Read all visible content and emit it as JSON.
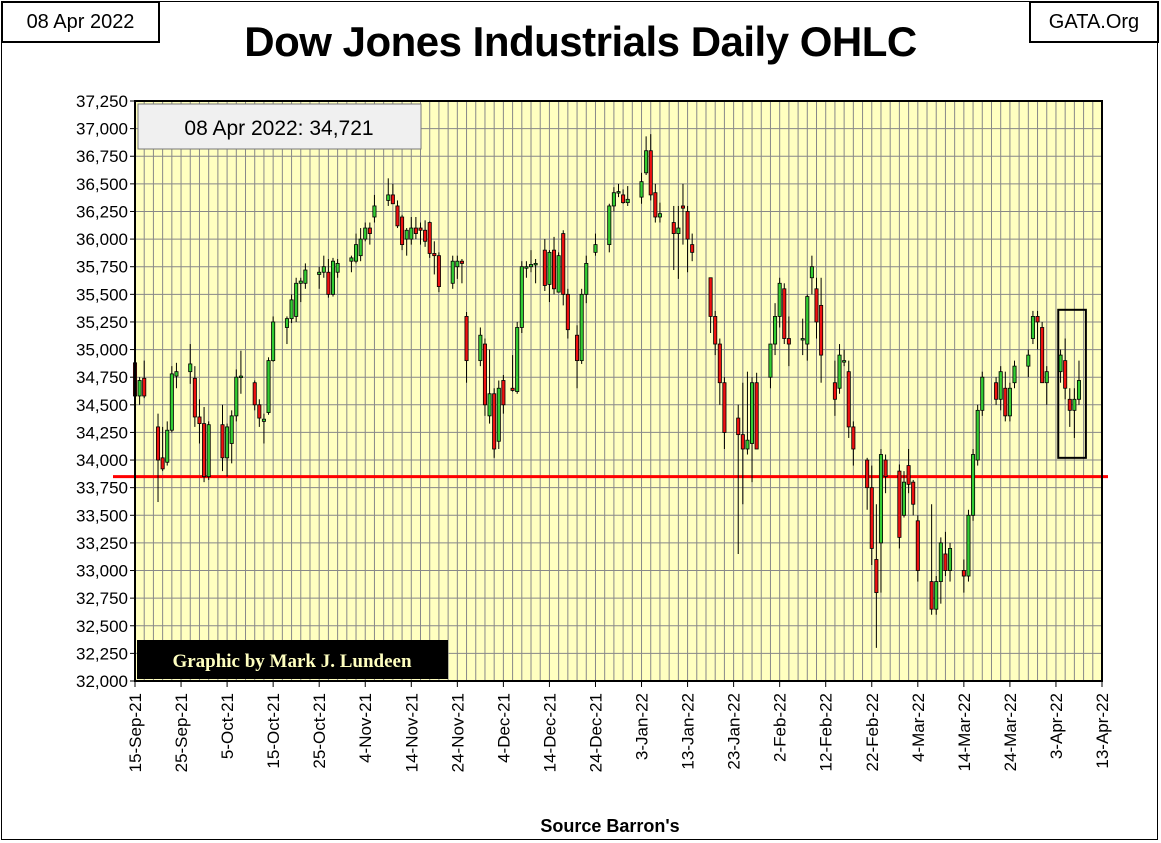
{
  "header": {
    "date_box": "08 Apr 2022",
    "source_box": "GATA.Org",
    "title": "Dow Jones Industrials Daily OHLC"
  },
  "footer": {
    "xlabel": "Source Barron's"
  },
  "chart_data": {
    "type": "candlestick",
    "title": "Dow Jones Industrials Daily OHLC",
    "xlabel": "Source Barron's",
    "ylabel": "",
    "ylim": [
      32000,
      37250
    ],
    "y_ticks": [
      32000,
      32250,
      32500,
      32750,
      33000,
      33250,
      33500,
      33750,
      34000,
      34250,
      34500,
      34750,
      35000,
      35250,
      35500,
      35750,
      36000,
      36250,
      36500,
      36750,
      37000,
      37250
    ],
    "y_tick_labels": [
      "32,000",
      "32,250",
      "32,500",
      "32,750",
      "33,000",
      "33,250",
      "33,500",
      "33,750",
      "34,000",
      "34,250",
      "34,500",
      "34,750",
      "35,000",
      "35,250",
      "35,500",
      "35,750",
      "36,000",
      "36,250",
      "36,500",
      "36,750",
      "37,000",
      "37,250"
    ],
    "x_range_days": [
      0,
      210
    ],
    "x_ticks": [
      0,
      10,
      20,
      30,
      40,
      50,
      60,
      70,
      80,
      90,
      100,
      110,
      120,
      130,
      140,
      150,
      160,
      170,
      180,
      190,
      200,
      210
    ],
    "x_tick_labels": [
      "15-Sep-21",
      "25-Sep-21",
      "5-Oct-21",
      "15-Oct-21",
      "25-Oct-21",
      "4-Nov-21",
      "14-Nov-21",
      "24-Nov-21",
      "4-Dec-21",
      "14-Dec-21",
      "24-Dec-21",
      "3-Jan-22",
      "13-Jan-22",
      "23-Jan-22",
      "2-Feb-22",
      "12-Feb-22",
      "22-Feb-22",
      "4-Mar-22",
      "14-Mar-22",
      "24-Mar-22",
      "3-Apr-22",
      "13-Apr-22"
    ],
    "grid": true,
    "annotation": "08 Apr 2022: 34,721",
    "credit": "Graphic by Mark J. Lundeen",
    "reference_line": {
      "value": 33850,
      "color": "#ff0000"
    },
    "highlight_box": {
      "x_range": [
        200.5,
        206.5
      ],
      "y_range": [
        34020,
        35360
      ]
    },
    "up_color": "#33cc33",
    "down_color": "#ee1111",
    "plot_bg": "#ffffc0",
    "candles": [
      {
        "d": 0,
        "o": 34880,
        "h": 34960,
        "l": 34550,
        "c": 34580
      },
      {
        "d": 1,
        "o": 34580,
        "h": 34750,
        "l": 34500,
        "c": 34720
      },
      {
        "d": 2,
        "o": 34740,
        "h": 34900,
        "l": 34560,
        "c": 34580
      },
      {
        "d": 5,
        "o": 34300,
        "h": 34420,
        "l": 33620,
        "c": 34000
      },
      {
        "d": 6,
        "o": 34020,
        "h": 34300,
        "l": 33900,
        "c": 33920
      },
      {
        "d": 7,
        "o": 33980,
        "h": 34350,
        "l": 33950,
        "c": 34270
      },
      {
        "d": 8,
        "o": 34270,
        "h": 34850,
        "l": 34250,
        "c": 34780
      },
      {
        "d": 9,
        "o": 34760,
        "h": 34880,
        "l": 34650,
        "c": 34800
      },
      {
        "d": 12,
        "o": 34800,
        "h": 35050,
        "l": 34690,
        "c": 34870
      },
      {
        "d": 13,
        "o": 34740,
        "h": 34850,
        "l": 34300,
        "c": 34390
      },
      {
        "d": 14,
        "o": 34390,
        "h": 34550,
        "l": 34150,
        "c": 34330
      },
      {
        "d": 15,
        "o": 34330,
        "h": 34480,
        "l": 33800,
        "c": 33850
      },
      {
        "d": 16,
        "o": 33850,
        "h": 34350,
        "l": 33820,
        "c": 34320
      },
      {
        "d": 19,
        "o": 34320,
        "h": 34500,
        "l": 33900,
        "c": 34020
      },
      {
        "d": 20,
        "o": 34020,
        "h": 34330,
        "l": 33850,
        "c": 34300
      },
      {
        "d": 21,
        "o": 34150,
        "h": 34450,
        "l": 33970,
        "c": 34400
      },
      {
        "d": 22,
        "o": 34400,
        "h": 34820,
        "l": 34350,
        "c": 34750
      },
      {
        "d": 23,
        "o": 34750,
        "h": 34990,
        "l": 34600,
        "c": 34760
      },
      {
        "d": 26,
        "o": 34700,
        "h": 34720,
        "l": 34450,
        "c": 34500
      },
      {
        "d": 27,
        "o": 34500,
        "h": 34550,
        "l": 34300,
        "c": 34380
      },
      {
        "d": 28,
        "o": 34350,
        "h": 34420,
        "l": 34150,
        "c": 34370
      },
      {
        "d": 29,
        "o": 34430,
        "h": 34930,
        "l": 34410,
        "c": 34900
      },
      {
        "d": 30,
        "o": 34900,
        "h": 35300,
        "l": 34890,
        "c": 35250
      },
      {
        "d": 33,
        "o": 35200,
        "h": 35300,
        "l": 35050,
        "c": 35280
      },
      {
        "d": 34,
        "o": 35280,
        "h": 35500,
        "l": 35240,
        "c": 35450
      },
      {
        "d": 35,
        "o": 35300,
        "h": 35650,
        "l": 35250,
        "c": 35600
      },
      {
        "d": 36,
        "o": 35600,
        "h": 35650,
        "l": 35430,
        "c": 35620
      },
      {
        "d": 37,
        "o": 35600,
        "h": 35780,
        "l": 35550,
        "c": 35720
      },
      {
        "d": 40,
        "o": 35680,
        "h": 35750,
        "l": 35550,
        "c": 35700
      },
      {
        "d": 41,
        "o": 35700,
        "h": 35850,
        "l": 35650,
        "c": 35750
      },
      {
        "d": 42,
        "o": 35700,
        "h": 35820,
        "l": 35470,
        "c": 35500
      },
      {
        "d": 43,
        "o": 35500,
        "h": 35830,
        "l": 35480,
        "c": 35800
      },
      {
        "d": 44,
        "o": 35700,
        "h": 35820,
        "l": 35650,
        "c": 35780
      },
      {
        "d": 47,
        "o": 35800,
        "h": 35850,
        "l": 35700,
        "c": 35830
      },
      {
        "d": 48,
        "o": 35800,
        "h": 36050,
        "l": 35780,
        "c": 35950
      },
      {
        "d": 49,
        "o": 35850,
        "h": 36100,
        "l": 35800,
        "c": 36000
      },
      {
        "d": 50,
        "o": 36000,
        "h": 36150,
        "l": 35980,
        "c": 36100
      },
      {
        "d": 51,
        "o": 36100,
        "h": 36150,
        "l": 35950,
        "c": 36050
      },
      {
        "d": 52,
        "o": 36200,
        "h": 36400,
        "l": 36150,
        "c": 36300
      },
      {
        "d": 55,
        "o": 36350,
        "h": 36550,
        "l": 36300,
        "c": 36400
      },
      {
        "d": 56,
        "o": 36400,
        "h": 36500,
        "l": 36330,
        "c": 36320
      },
      {
        "d": 57,
        "o": 36300,
        "h": 36350,
        "l": 36100,
        "c": 36120
      },
      {
        "d": 58,
        "o": 36200,
        "h": 36220,
        "l": 35900,
        "c": 35950
      },
      {
        "d": 59,
        "o": 36000,
        "h": 36100,
        "l": 35850,
        "c": 36080
      },
      {
        "d": 60,
        "o": 36000,
        "h": 36200,
        "l": 35950,
        "c": 36100
      },
      {
        "d": 61,
        "o": 36100,
        "h": 36200,
        "l": 36000,
        "c": 36050
      },
      {
        "d": 62,
        "o": 36100,
        "h": 36150,
        "l": 35950,
        "c": 36080
      },
      {
        "d": 63,
        "o": 36080,
        "h": 36170,
        "l": 35930,
        "c": 35980
      },
      {
        "d": 64,
        "o": 36150,
        "h": 36160,
        "l": 35830,
        "c": 35870
      },
      {
        "d": 65,
        "o": 35870,
        "h": 35980,
        "l": 35680,
        "c": 35850
      },
      {
        "d": 66,
        "o": 35850,
        "h": 35880,
        "l": 35520,
        "c": 35570
      },
      {
        "d": 69,
        "o": 35600,
        "h": 35850,
        "l": 35550,
        "c": 35800
      },
      {
        "d": 70,
        "o": 35750,
        "h": 35850,
        "l": 35640,
        "c": 35800
      },
      {
        "d": 71,
        "o": 35800,
        "h": 35820,
        "l": 35600,
        "c": 35780
      },
      {
        "d": 72,
        "o": 35300,
        "h": 35340,
        "l": 34700,
        "c": 34900
      },
      {
        "d": 75,
        "o": 34900,
        "h": 35200,
        "l": 34850,
        "c": 35130
      },
      {
        "d": 76,
        "o": 35050,
        "h": 35100,
        "l": 34400,
        "c": 34500
      },
      {
        "d": 77,
        "o": 34400,
        "h": 35000,
        "l": 34330,
        "c": 34600
      },
      {
        "d": 78,
        "o": 34600,
        "h": 34650,
        "l": 34020,
        "c": 34100
      },
      {
        "d": 79,
        "o": 34170,
        "h": 34720,
        "l": 34100,
        "c": 34650
      },
      {
        "d": 80,
        "o": 34720,
        "h": 34770,
        "l": 34420,
        "c": 34500
      },
      {
        "d": 82,
        "o": 34650,
        "h": 34950,
        "l": 34620,
        "c": 34630
      },
      {
        "d": 83,
        "o": 34620,
        "h": 35250,
        "l": 34600,
        "c": 35200
      },
      {
        "d": 84,
        "o": 35200,
        "h": 35800,
        "l": 35150,
        "c": 35750
      },
      {
        "d": 85,
        "o": 35750,
        "h": 35800,
        "l": 35650,
        "c": 35750
      },
      {
        "d": 86,
        "o": 35750,
        "h": 35900,
        "l": 35700,
        "c": 35770
      },
      {
        "d": 87,
        "o": 35770,
        "h": 35820,
        "l": 35600,
        "c": 35780
      },
      {
        "d": 89,
        "o": 35900,
        "h": 36000,
        "l": 35530,
        "c": 35580
      },
      {
        "d": 90,
        "o": 35590,
        "h": 35900,
        "l": 35430,
        "c": 35880
      },
      {
        "d": 91,
        "o": 35900,
        "h": 36020,
        "l": 35500,
        "c": 35550
      },
      {
        "d": 92,
        "o": 35520,
        "h": 35880,
        "l": 35520,
        "c": 35850
      },
      {
        "d": 93,
        "o": 36050,
        "h": 36080,
        "l": 35400,
        "c": 35500
      },
      {
        "d": 94,
        "o": 35500,
        "h": 35550,
        "l": 35100,
        "c": 35180
      },
      {
        "d": 96,
        "o": 35130,
        "h": 35220,
        "l": 34650,
        "c": 34900
      },
      {
        "d": 97,
        "o": 34900,
        "h": 35550,
        "l": 34870,
        "c": 35500
      },
      {
        "d": 98,
        "o": 35500,
        "h": 35850,
        "l": 35420,
        "c": 35780
      },
      {
        "d": 100,
        "o": 35880,
        "h": 36050,
        "l": 35850,
        "c": 35950
      },
      {
        "d": 103,
        "o": 35950,
        "h": 36320,
        "l": 35880,
        "c": 36300
      },
      {
        "d": 104,
        "o": 36300,
        "h": 36470,
        "l": 36250,
        "c": 36420
      },
      {
        "d": 105,
        "o": 36420,
        "h": 36500,
        "l": 36380,
        "c": 36430
      },
      {
        "d": 106,
        "o": 36400,
        "h": 36450,
        "l": 36320,
        "c": 36330
      },
      {
        "d": 107,
        "o": 36330,
        "h": 36480,
        "l": 36300,
        "c": 36360
      },
      {
        "d": 110,
        "o": 36380,
        "h": 36600,
        "l": 36320,
        "c": 36520
      },
      {
        "d": 111,
        "o": 36600,
        "h": 36930,
        "l": 36580,
        "c": 36800
      },
      {
        "d": 112,
        "o": 36800,
        "h": 36950,
        "l": 36350,
        "c": 36400
      },
      {
        "d": 113,
        "o": 36420,
        "h": 36500,
        "l": 36150,
        "c": 36200
      },
      {
        "d": 114,
        "o": 36200,
        "h": 36330,
        "l": 36150,
        "c": 36230
      },
      {
        "d": 117,
        "o": 36150,
        "h": 36300,
        "l": 35720,
        "c": 36050
      },
      {
        "d": 118,
        "o": 36050,
        "h": 36300,
        "l": 35640,
        "c": 36100
      },
      {
        "d": 119,
        "o": 36300,
        "h": 36500,
        "l": 35950,
        "c": 36280
      },
      {
        "d": 120,
        "o": 36250,
        "h": 36300,
        "l": 35700,
        "c": 36000
      },
      {
        "d": 121,
        "o": 35950,
        "h": 36050,
        "l": 35800,
        "c": 35880
      },
      {
        "d": 125,
        "o": 35650,
        "h": 35650,
        "l": 35150,
        "c": 35300
      },
      {
        "d": 126,
        "o": 35300,
        "h": 35350,
        "l": 34950,
        "c": 35050
      },
      {
        "d": 127,
        "o": 35050,
        "h": 35100,
        "l": 34500,
        "c": 34700
      },
      {
        "d": 128,
        "o": 34700,
        "h": 34750,
        "l": 34100,
        "c": 34250
      },
      {
        "d": 131,
        "o": 34380,
        "h": 34500,
        "l": 33150,
        "c": 34230
      },
      {
        "d": 132,
        "o": 34230,
        "h": 34700,
        "l": 33600,
        "c": 34100
      },
      {
        "d": 133,
        "o": 34100,
        "h": 34800,
        "l": 34050,
        "c": 34180
      },
      {
        "d": 134,
        "o": 34150,
        "h": 34750,
        "l": 33800,
        "c": 34700
      },
      {
        "d": 135,
        "o": 34700,
        "h": 34790,
        "l": 34100,
        "c": 34100
      },
      {
        "d": 138,
        "o": 34750,
        "h": 35050,
        "l": 34650,
        "c": 35050
      },
      {
        "d": 139,
        "o": 35050,
        "h": 35420,
        "l": 34950,
        "c": 35300
      },
      {
        "d": 140,
        "o": 35300,
        "h": 35650,
        "l": 35200,
        "c": 35600
      },
      {
        "d": 141,
        "o": 35550,
        "h": 35600,
        "l": 35050,
        "c": 35100
      },
      {
        "d": 142,
        "o": 35100,
        "h": 35300,
        "l": 34850,
        "c": 35050
      },
      {
        "d": 145,
        "o": 35100,
        "h": 35280,
        "l": 34950,
        "c": 35100
      },
      {
        "d": 146,
        "o": 35050,
        "h": 35500,
        "l": 34900,
        "c": 35480
      },
      {
        "d": 147,
        "o": 35650,
        "h": 35850,
        "l": 35500,
        "c": 35750
      },
      {
        "d": 148,
        "o": 35550,
        "h": 35650,
        "l": 35100,
        "c": 35250
      },
      {
        "d": 149,
        "o": 35400,
        "h": 35650,
        "l": 34700,
        "c": 34950
      },
      {
        "d": 152,
        "o": 34700,
        "h": 34900,
        "l": 34400,
        "c": 34550
      },
      {
        "d": 153,
        "o": 34650,
        "h": 35050,
        "l": 34600,
        "c": 34950
      },
      {
        "d": 154,
        "o": 34900,
        "h": 35000,
        "l": 34850,
        "c": 34900
      },
      {
        "d": 155,
        "o": 34800,
        "h": 34900,
        "l": 34200,
        "c": 34300
      },
      {
        "d": 156,
        "o": 34300,
        "h": 34350,
        "l": 33950,
        "c": 34100
      },
      {
        "d": 159,
        "o": 34000,
        "h": 34020,
        "l": 33550,
        "c": 33750
      },
      {
        "d": 160,
        "o": 33750,
        "h": 33950,
        "l": 33050,
        "c": 33200
      },
      {
        "d": 161,
        "o": 33100,
        "h": 33600,
        "l": 32300,
        "c": 32800
      },
      {
        "d": 162,
        "o": 33250,
        "h": 34100,
        "l": 32800,
        "c": 34050
      },
      {
        "d": 163,
        "o": 34000,
        "h": 34050,
        "l": 33700,
        "c": 33850
      },
      {
        "d": 166,
        "o": 33900,
        "h": 33960,
        "l": 33200,
        "c": 33300
      },
      {
        "d": 167,
        "o": 33500,
        "h": 33900,
        "l": 33480,
        "c": 33800
      },
      {
        "d": 168,
        "o": 33950,
        "h": 34100,
        "l": 33700,
        "c": 33780
      },
      {
        "d": 169,
        "o": 33800,
        "h": 33820,
        "l": 33500,
        "c": 33600
      },
      {
        "d": 170,
        "o": 33450,
        "h": 33500,
        "l": 32900,
        "c": 33000
      },
      {
        "d": 173,
        "o": 32900,
        "h": 33600,
        "l": 32600,
        "c": 32650
      },
      {
        "d": 174,
        "o": 32650,
        "h": 32950,
        "l": 32600,
        "c": 32900
      },
      {
        "d": 175,
        "o": 32900,
        "h": 33300,
        "l": 32700,
        "c": 33250
      },
      {
        "d": 176,
        "o": 33150,
        "h": 33350,
        "l": 32950,
        "c": 33000
      },
      {
        "d": 177,
        "o": 33000,
        "h": 33250,
        "l": 32900,
        "c": 33200
      },
      {
        "d": 180,
        "o": 33000,
        "h": 33100,
        "l": 32800,
        "c": 32950
      },
      {
        "d": 181,
        "o": 32950,
        "h": 33550,
        "l": 32900,
        "c": 33500
      },
      {
        "d": 182,
        "o": 33500,
        "h": 34100,
        "l": 33450,
        "c": 34050
      },
      {
        "d": 183,
        "o": 34000,
        "h": 34500,
        "l": 33950,
        "c": 34450
      },
      {
        "d": 184,
        "o": 34450,
        "h": 34800,
        "l": 34400,
        "c": 34750
      },
      {
        "d": 187,
        "o": 34700,
        "h": 34750,
        "l": 34500,
        "c": 34550
      },
      {
        "d": 188,
        "o": 34550,
        "h": 34850,
        "l": 34450,
        "c": 34800
      },
      {
        "d": 189,
        "o": 34650,
        "h": 34800,
        "l": 34350,
        "c": 34400
      },
      {
        "d": 190,
        "o": 34400,
        "h": 34700,
        "l": 34350,
        "c": 34650
      },
      {
        "d": 191,
        "o": 34700,
        "h": 34900,
        "l": 34650,
        "c": 34850
      },
      {
        "d": 194,
        "o": 34850,
        "h": 35000,
        "l": 34750,
        "c": 34950
      },
      {
        "d": 195,
        "o": 35100,
        "h": 35350,
        "l": 35050,
        "c": 35300
      },
      {
        "d": 196,
        "o": 35300,
        "h": 35350,
        "l": 35000,
        "c": 35250
      },
      {
        "d": 197,
        "o": 35200,
        "h": 35250,
        "l": 34700,
        "c": 34700
      },
      {
        "d": 198,
        "o": 34700,
        "h": 34850,
        "l": 34500,
        "c": 34800
      },
      {
        "d": 201,
        "o": 34800,
        "h": 35000,
        "l": 34700,
        "c": 34950
      },
      {
        "d": 202,
        "o": 34900,
        "h": 35100,
        "l": 34550,
        "c": 34650
      },
      {
        "d": 203,
        "o": 34550,
        "h": 34650,
        "l": 34300,
        "c": 34450
      },
      {
        "d": 204,
        "o": 34450,
        "h": 34650,
        "l": 34200,
        "c": 34550
      },
      {
        "d": 205,
        "o": 34550,
        "h": 34900,
        "l": 34500,
        "c": 34720
      }
    ]
  }
}
